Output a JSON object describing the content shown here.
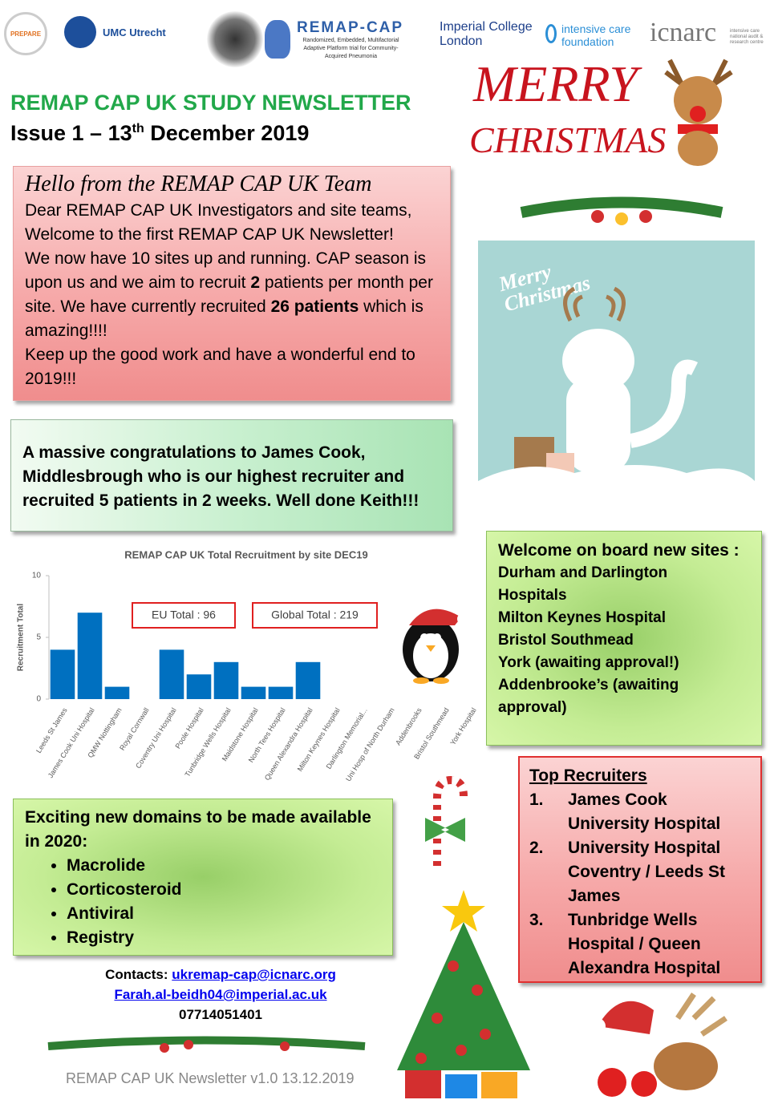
{
  "logos": {
    "prepare": "PREPARE",
    "umc": "UMC Utrecht",
    "remap": "REMAP-CAP",
    "remap_sub": "Randomized, Embedded, Multifactorial Adaptive Platform trial for Community-Acquired Pneumonia",
    "imperial": [
      "Imperial College",
      "London"
    ],
    "icf": [
      "intensive care",
      "foundation"
    ],
    "icnarc": "icnarc",
    "icnarc_sub": "intensive care national audit & research centre"
  },
  "header": {
    "title": "REMAP CAP UK STUDY NEWSLETTER",
    "issue": "Issue 1 – 13",
    "issue_sup": "th",
    "issue_rest": " December 2019"
  },
  "decor": {
    "merry": "MERRY",
    "christmas": "CHRISTMAS",
    "card_text": "Merry Christmas"
  },
  "hello": {
    "heading": "Hello from the REMAP CAP UK Team",
    "paragraphs": [
      [
        {
          "text": "Dear REMAP CAP UK Investigators and site teams,",
          "bold": false
        }
      ],
      [
        {
          "text": "Welcome to the first REMAP CAP UK Newsletter!",
          "bold": false
        }
      ],
      [
        {
          "text": "We now have 10 sites up and running. CAP season is upon us and we aim to recruit ",
          "bold": false
        },
        {
          "text": "2",
          "bold": true
        },
        {
          "text": " patients per month per site. We have currently recruited ",
          "bold": false
        },
        {
          "text": "26 patients",
          "bold": true
        },
        {
          "text": " which is amazing!!!!",
          "bold": false
        }
      ],
      [
        {
          "text": "Keep up the good work and have a wonderful end to 2019!!!",
          "bold": false
        }
      ]
    ]
  },
  "congrats": {
    "text": "A massive congratulations to James Cook, Middlesbrough who is our highest recruiter and recruited 5 patients in 2 weeks. Well done Keith!!!"
  },
  "chart_data": {
    "type": "bar",
    "title": "REMAP CAP UK Total Recruitment by site  DEC19",
    "y_label": "Recruitment Total",
    "categories": [
      "Leeds St James",
      "James Cook Uni Hospital",
      "QMW Nottingham",
      "Royal Cornwall",
      "Coventry Uni Hospital",
      "Poole Hospital",
      "Tunbridge Wells Hospital",
      "Maidstone Hospital",
      "North Tees Hospital",
      "Queen Alexandra Hospital",
      "Milton Keynes Hospital",
      "Darlington Memorial...",
      "Uni Hosp of North Durham",
      "Addenbrooks",
      "Bristol Southmead",
      "York Hospital"
    ],
    "values": [
      4,
      7,
      1,
      0,
      4,
      2,
      3,
      1,
      1,
      3,
      0,
      0,
      0,
      0,
      0,
      0
    ],
    "color": "#0070c0",
    "ylim": [
      0,
      10
    ],
    "yticks": [
      0,
      5,
      10
    ],
    "grid": false,
    "annotations": [
      "EU Total : 96",
      "Global Total : 219"
    ]
  },
  "welcome": {
    "heading": "Welcome on board new  sites :",
    "sites": [
      "Durham and Darlington Hospitals",
      "Milton Keynes Hospital",
      "Bristol Southmead",
      "York (awaiting approval!)",
      "Addenbrooke’s (awaiting approval)"
    ]
  },
  "domains": {
    "heading": "Exciting new domains to be made available in 2020:",
    "items": [
      "Macrolide",
      "Corticosteroid",
      "Antiviral",
      "Registry"
    ]
  },
  "top_recruiters": {
    "heading": "Top Recruiters",
    "items": [
      {
        "number": "1.",
        "text": "James Cook University Hospital"
      },
      {
        "number": "2.",
        "text": "University Hospital Coventry / Leeds St James"
      },
      {
        "number": "3.",
        "text": "Tunbridge Wells Hospital / Queen Alexandra Hospital"
      }
    ]
  },
  "contacts": {
    "label": "Contacts:",
    "emails": [
      "ukremap-cap@icnarc.org",
      "Farah.al-beidh04@imperial.ac.uk"
    ],
    "phone": "07714051401"
  },
  "footer": "REMAP CAP UK Newsletter v1.0 13.12.2019"
}
